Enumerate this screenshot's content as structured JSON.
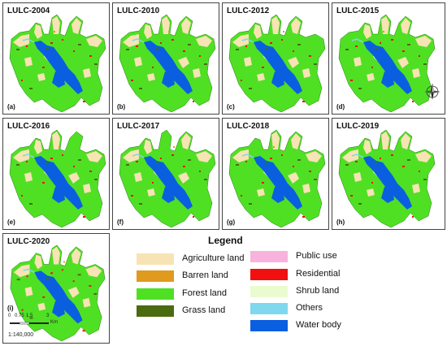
{
  "panels": [
    {
      "title": "LULC-2004",
      "letter": "(a)"
    },
    {
      "title": "LULC-2010",
      "letter": "(b)"
    },
    {
      "title": "LULC-2012",
      "letter": "(c)"
    },
    {
      "title": "LULC-2015",
      "letter": "(d)"
    },
    {
      "title": "LULC-2016",
      "letter": "(e)"
    },
    {
      "title": "LULC-2017",
      "letter": "(f)"
    },
    {
      "title": "LULC-2018",
      "letter": "(g)"
    },
    {
      "title": "LULC-2019",
      "letter": "(h)"
    },
    {
      "title": "LULC-2020",
      "letter": "(i)"
    }
  ],
  "legend": {
    "title": "Legend",
    "items": [
      {
        "label": "Agriculture land",
        "color": "#f8e3b4"
      },
      {
        "label": "Barren land",
        "color": "#e09a1e"
      },
      {
        "label": "Forest land",
        "color": "#4fe024"
      },
      {
        "label": "Grass land",
        "color": "#4a6b0f"
      },
      {
        "label": "Public use",
        "color": "#f7b3de"
      },
      {
        "label": "Residential",
        "color": "#f01010"
      },
      {
        "label": "Shrub land",
        "color": "#eafccf"
      },
      {
        "label": "Others",
        "color": "#7fd8ee"
      },
      {
        "label": "Water body",
        "color": "#0a5fe0"
      }
    ]
  },
  "scale": {
    "ticks": [
      "0",
      "0.75",
      "1.5",
      "3"
    ],
    "unit": "Km",
    "ratio": "1:140,000"
  },
  "colors": {
    "forest": "#4fe024",
    "water": "#0a5fe0",
    "agriculture": "#f8e3b4",
    "residential": "#f01010",
    "grass": "#4a6b0f",
    "barren": "#e09a1e",
    "others": "#7fd8ee"
  },
  "compass_icon": "north-arrow-icon"
}
